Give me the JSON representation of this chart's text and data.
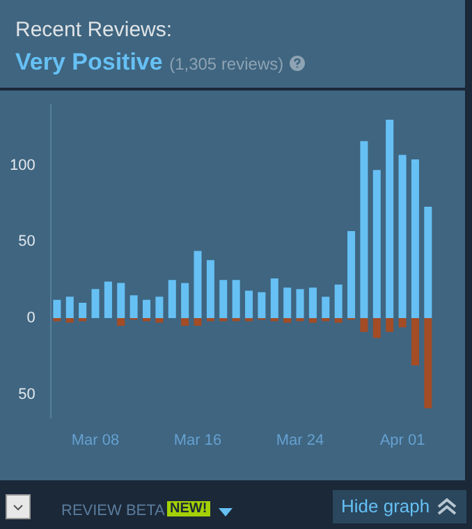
{
  "chart_data": {
    "type": "bar",
    "title": "Recent Reviews:",
    "subtitle": "Very Positive (1,305 reviews)",
    "categories": [
      null,
      null,
      null,
      "Mar 08",
      null,
      null,
      null,
      null,
      null,
      null,
      null,
      "Mar 16",
      null,
      null,
      null,
      null,
      null,
      null,
      null,
      "Mar 24",
      null,
      null,
      null,
      null,
      null,
      null,
      null,
      "Apr 01",
      null,
      null
    ],
    "series": [
      {
        "color": "#66c0f4",
        "values": [
          12,
          14,
          10,
          19,
          24,
          23,
          15,
          12,
          14,
          25,
          23,
          44,
          38,
          25,
          25,
          18,
          17,
          26,
          20,
          19,
          20,
          14,
          22,
          57,
          116,
          97,
          130,
          107,
          104,
          73
        ]
      },
      {
        "color": "#a34c25",
        "values": [
          -2,
          -3,
          -2,
          0,
          0,
          -5,
          -1,
          -2,
          -3,
          0,
          -5,
          -5,
          -2,
          -2,
          -2,
          -2,
          -1,
          -2,
          -3,
          -2,
          -3,
          -2,
          -3,
          -1,
          -9,
          -13,
          -9,
          -6,
          -31,
          -59
        ]
      }
    ],
    "stacked": true,
    "ylim": [
      -65,
      140
    ],
    "yticks": [
      {
        "value": -50,
        "label": "50"
      },
      0,
      50,
      100
    ],
    "grid": false,
    "legend": false,
    "annotations": [
      "REVIEW BETA",
      "NEW!",
      "Hide graph"
    ]
  }
}
